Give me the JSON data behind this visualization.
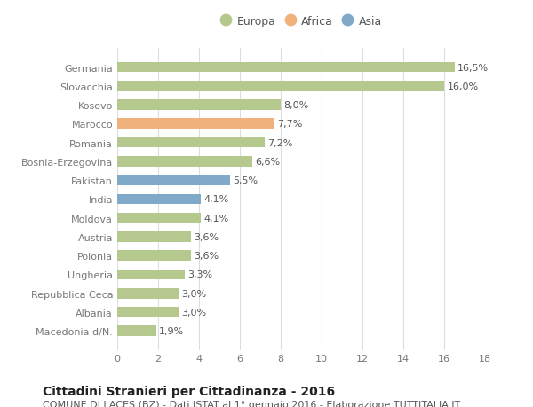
{
  "categories": [
    "Germania",
    "Slovacchia",
    "Kosovo",
    "Marocco",
    "Romania",
    "Bosnia-Erzegovina",
    "Pakistan",
    "India",
    "Moldova",
    "Austria",
    "Polonia",
    "Ungheria",
    "Repubblica Ceca",
    "Albania",
    "Macedonia d/N."
  ],
  "values": [
    16.5,
    16.0,
    8.0,
    7.7,
    7.2,
    6.6,
    5.5,
    4.1,
    4.1,
    3.6,
    3.6,
    3.3,
    3.0,
    3.0,
    1.9
  ],
  "labels": [
    "16,5%",
    "16,0%",
    "8,0%",
    "7,7%",
    "7,2%",
    "6,6%",
    "5,5%",
    "4,1%",
    "4,1%",
    "3,6%",
    "3,6%",
    "3,3%",
    "3,0%",
    "3,0%",
    "1,9%"
  ],
  "continents": [
    "Europa",
    "Europa",
    "Europa",
    "Africa",
    "Europa",
    "Europa",
    "Asia",
    "Asia",
    "Europa",
    "Europa",
    "Europa",
    "Europa",
    "Europa",
    "Europa",
    "Europa"
  ],
  "colors": {
    "Europa": "#b5c98e",
    "Africa": "#f0b27a",
    "Asia": "#7fa8c9"
  },
  "xlim": [
    0,
    18
  ],
  "xticks": [
    0,
    2,
    4,
    6,
    8,
    10,
    12,
    14,
    16,
    18
  ],
  "title": "Cittadini Stranieri per Cittadinanza - 2016",
  "subtitle": "COMUNE DI LACES (BZ) - Dati ISTAT al 1° gennaio 2016 - Elaborazione TUTTITALIA.IT",
  "background_color": "#ffffff",
  "grid_color": "#dddddd",
  "bar_height": 0.55,
  "label_fontsize": 8,
  "tick_fontsize": 8,
  "title_fontsize": 10,
  "subtitle_fontsize": 8
}
